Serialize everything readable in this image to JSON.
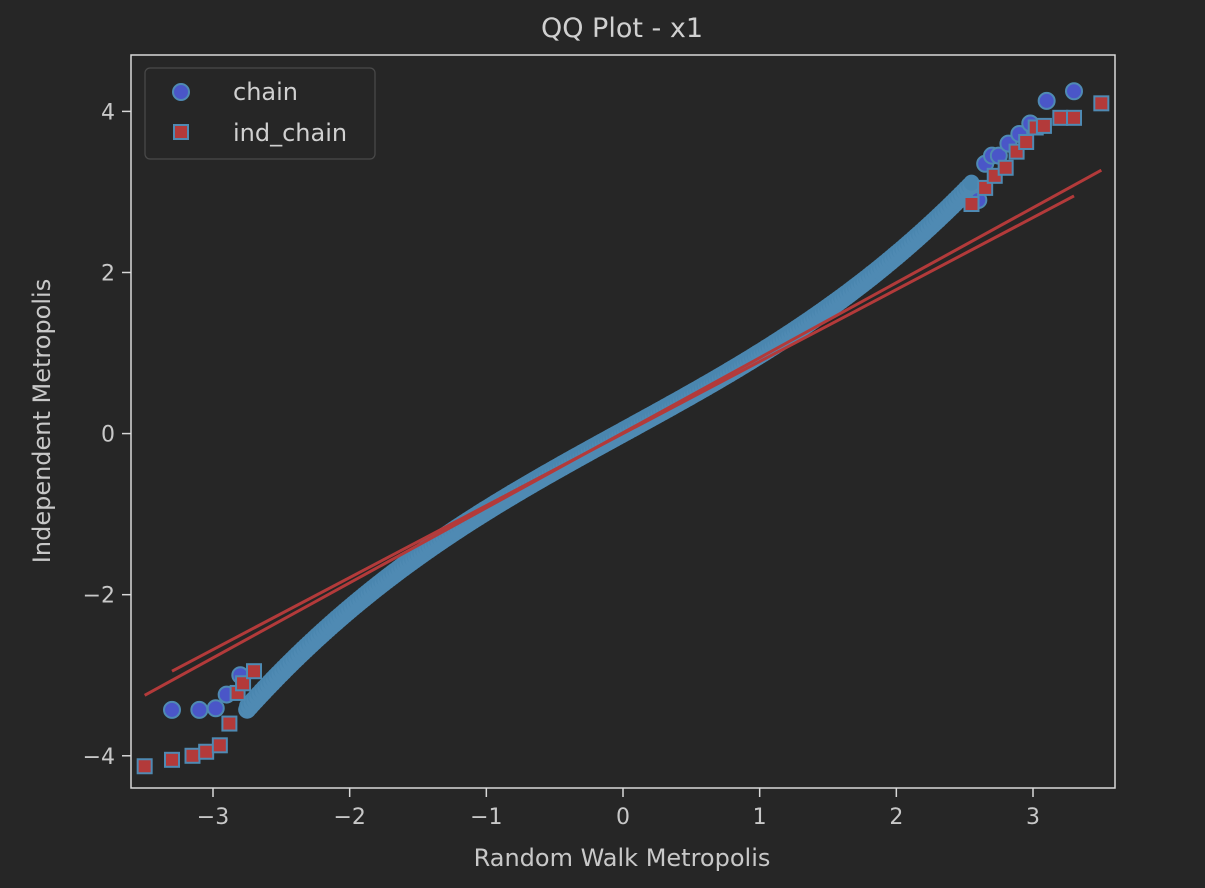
{
  "chart_data": {
    "type": "scatter",
    "title": "QQ Plot - x1",
    "xlabel": "Random Walk Metropolis",
    "ylabel": "Independent Metropolis",
    "xlim": [
      -3.6,
      3.6
    ],
    "ylim": [
      -4.4,
      4.7
    ],
    "xticks": [
      -3,
      -2,
      -1,
      0,
      1,
      2,
      3
    ],
    "yticks": [
      -4,
      -2,
      0,
      2,
      4
    ],
    "xtick_labels": [
      "−3",
      "−2",
      "−1",
      "0",
      "1",
      "2",
      "3"
    ],
    "ytick_labels": [
      "−4",
      "−2",
      "0",
      "2",
      "4"
    ],
    "grid": false,
    "legend_position": "top-left",
    "series": [
      {
        "name": "chain",
        "marker": "circle",
        "color": "#4a56c8",
        "edge_color": "#4f8ab3",
        "points": [
          [
            -3.3,
            -3.43
          ],
          [
            -3.1,
            -3.43
          ],
          [
            -2.98,
            -3.41
          ],
          [
            -2.9,
            -3.24
          ],
          [
            -2.8,
            -3.0
          ],
          [
            2.6,
            2.9
          ],
          [
            2.65,
            3.35
          ],
          [
            2.7,
            3.45
          ],
          [
            2.75,
            3.45
          ],
          [
            2.82,
            3.6
          ],
          [
            2.9,
            3.72
          ],
          [
            2.98,
            3.85
          ],
          [
            3.1,
            4.13
          ],
          [
            3.3,
            4.25
          ]
        ],
        "fit_line": [
          [
            -3.3,
            -2.95
          ],
          [
            3.3,
            2.95
          ]
        ]
      },
      {
        "name": "ind_chain",
        "marker": "square",
        "color": "#b33a3a",
        "edge_color": "#4f8ab3",
        "points": [
          [
            -3.5,
            -4.13
          ],
          [
            -3.3,
            -4.05
          ],
          [
            -3.15,
            -4.0
          ],
          [
            -3.05,
            -3.95
          ],
          [
            -2.95,
            -3.87
          ],
          [
            -2.88,
            -3.6
          ],
          [
            -2.82,
            -3.22
          ],
          [
            -2.78,
            -3.1
          ],
          [
            -2.7,
            -2.95
          ],
          [
            2.55,
            2.85
          ],
          [
            2.65,
            3.05
          ],
          [
            2.72,
            3.2
          ],
          [
            2.8,
            3.3
          ],
          [
            2.88,
            3.5
          ],
          [
            2.95,
            3.62
          ],
          [
            3.02,
            3.8
          ],
          [
            3.08,
            3.82
          ],
          [
            3.2,
            3.92
          ],
          [
            3.3,
            3.92
          ],
          [
            3.5,
            4.1
          ]
        ],
        "fit_line": [
          [
            -3.5,
            -3.25
          ],
          [
            3.5,
            3.27
          ]
        ]
      }
    ]
  }
}
